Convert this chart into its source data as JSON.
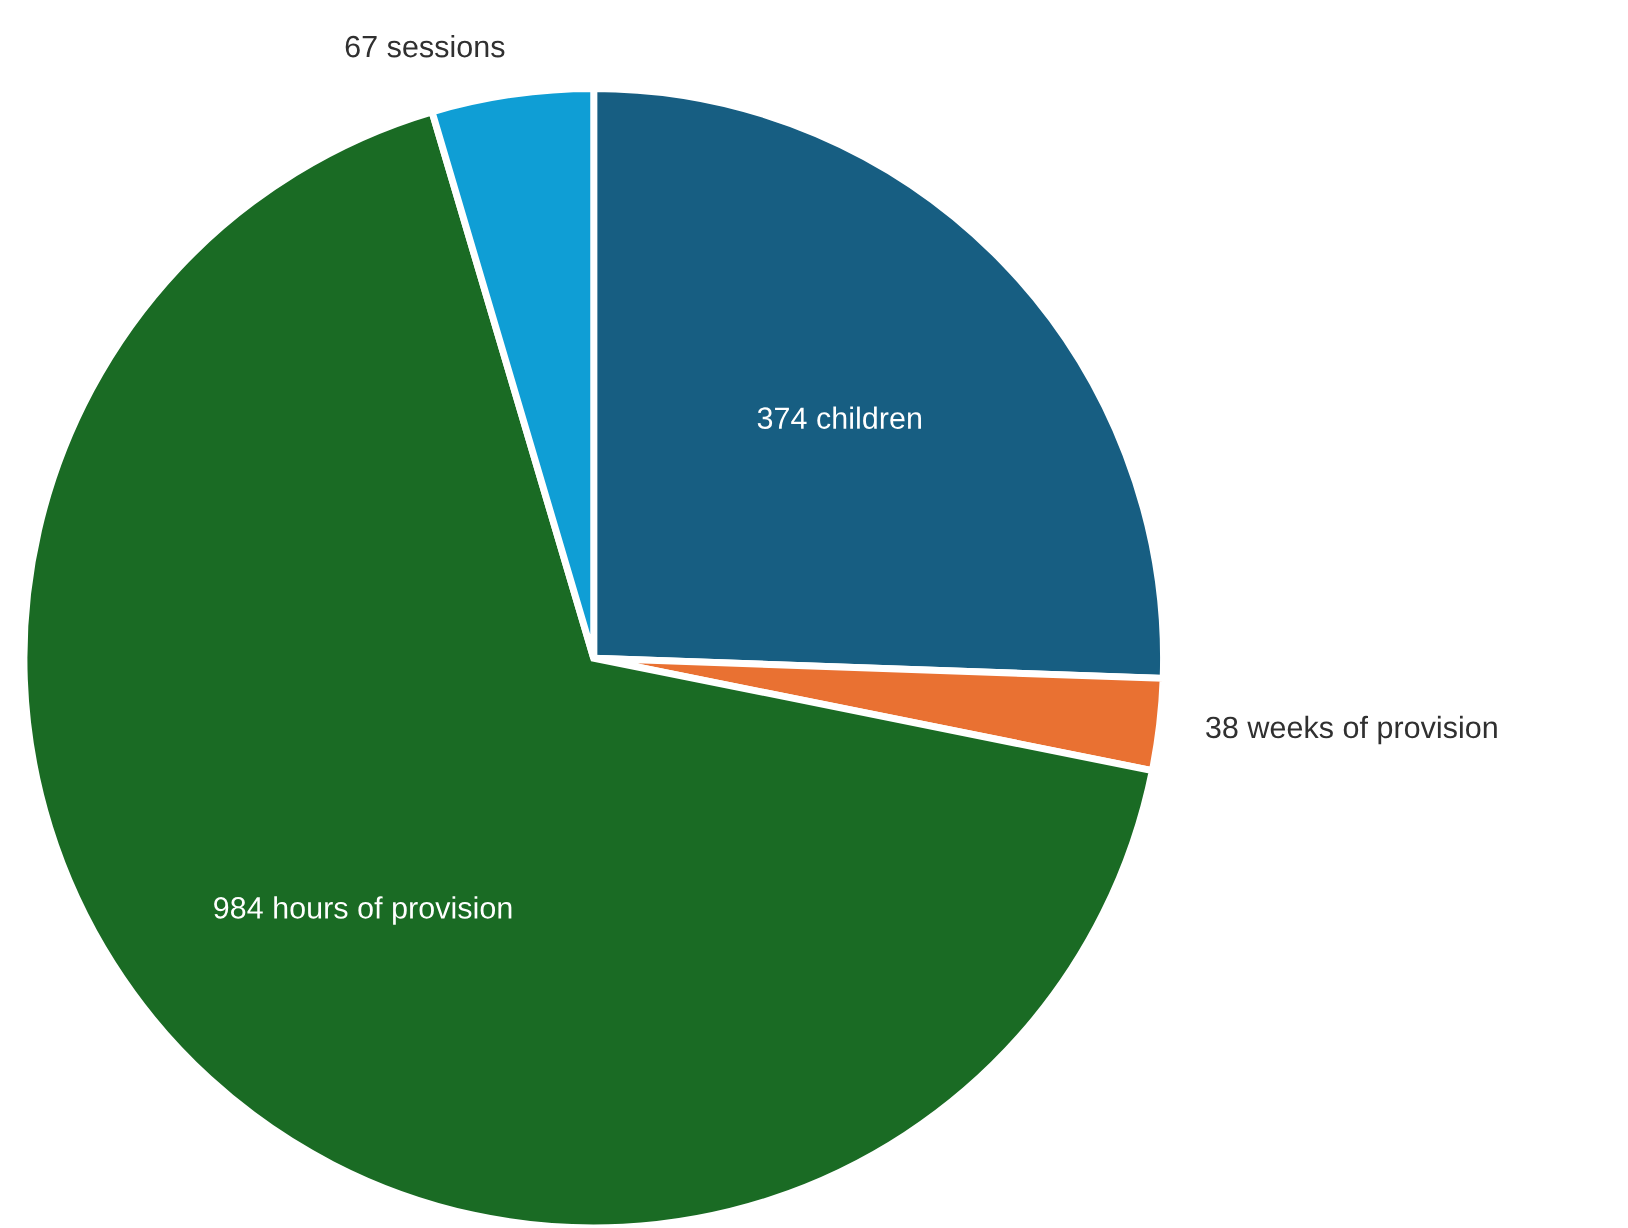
{
  "chart_data": {
    "type": "pie",
    "categories": [
      "374 children",
      "38 weeks of provision",
      "984 hours of provision",
      "67 sessions"
    ],
    "values": [
      374,
      38,
      984,
      67
    ],
    "colors": [
      "#175e82",
      "#e97132",
      "#1a6b24",
      "#0f9ed5"
    ]
  }
}
